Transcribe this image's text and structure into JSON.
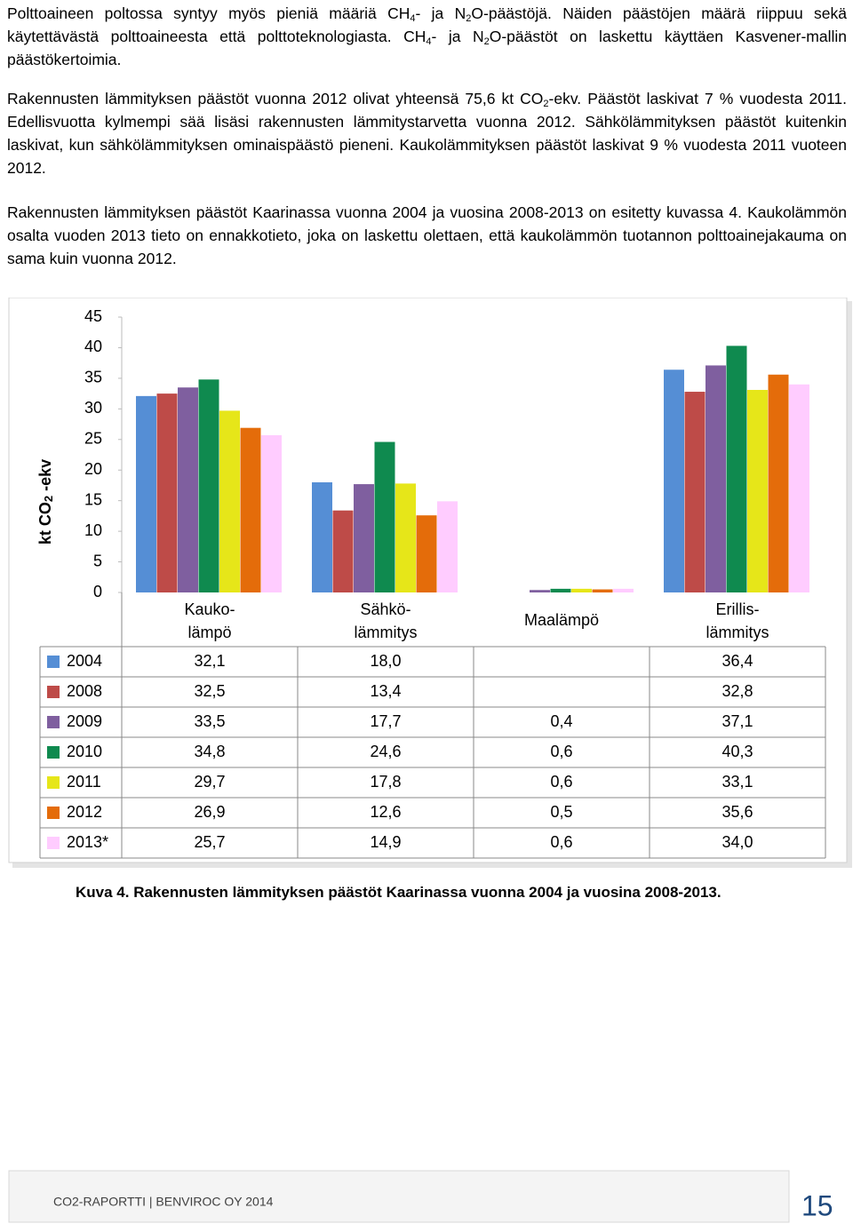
{
  "paragraphs": [
    {
      "runs": [
        "Polttoaineen poltossa syntyy myös pieniä määriä CH",
        "4",
        "- ja N",
        "2",
        "O-päästöjä. Näiden päästöjen määrä riippuu sekä käytettävästä polttoaineesta että polttoteknologiasta. CH",
        "4",
        "- ja N",
        "2",
        "O-päästöt on laskettu käyttäen Kasvener-mallin päästökertoimia."
      ]
    },
    {
      "runs": [
        "Rakennusten lämmityksen päästöt vuonna 2012 olivat yhteensä 75,6 kt CO",
        "2",
        "-ekv. Päästöt laskivat 7 % vuodesta 2011. Edellisvuotta kylmempi sää lisäsi rakennusten lämmitystarvetta vuonna 2012. Sähkölämmityksen päästöt kuitenkin laskivat, kun sähkölämmityksen ominaispäästö pieneni. Kaukolämmityksen päästöt laskivat 9 % vuodesta 2011 vuoteen 2012."
      ]
    },
    {
      "runs": [
        "Rakennusten lämmityksen päästöt Kaarinassa  vuonna 2004 ja vuosina 2008-2013 on esitetty kuvassa 4. Kaukolämmön osalta vuoden 2013 tieto on ennakkotieto, joka on laskettu olettaen, että kaukolämmön tuotannon polttoainejakauma on sama kuin vuonna 2012."
      ]
    }
  ],
  "chart_data": {
    "type": "bar",
    "y_label_runs": [
      "kt CO",
      "2",
      " -ekv"
    ],
    "categories": [
      "Kauko-\nlämpö",
      "Sähkö-\nlämmitys",
      "Maalämpö",
      "Erillis-\nlämmitys"
    ],
    "ylim": [
      0,
      45
    ],
    "yticks": [
      0,
      5,
      10,
      15,
      20,
      25,
      30,
      35,
      40,
      45
    ],
    "series": [
      {
        "name": "2004",
        "color": "#558ed5",
        "values": [
          32.1,
          18.0,
          null,
          36.4
        ],
        "value_labels": [
          "32,1",
          "18,0",
          null,
          "36,4"
        ]
      },
      {
        "name": "2008",
        "color": "#be4b48",
        "values": [
          32.5,
          13.4,
          null,
          32.8
        ],
        "value_labels": [
          "32,5",
          "13,4",
          null,
          "32,8"
        ]
      },
      {
        "name": "2009",
        "color": "#7f5f9f",
        "values": [
          33.5,
          17.7,
          0.4,
          37.1
        ],
        "value_labels": [
          "33,5",
          "17,7",
          "0,4",
          "37,1"
        ]
      },
      {
        "name": "2010",
        "color": "#0f8a4f",
        "values": [
          34.8,
          24.6,
          0.6,
          40.3
        ],
        "value_labels": [
          "34,8",
          "24,6",
          "0,6",
          "40,3"
        ]
      },
      {
        "name": "2011",
        "color": "#e6e619",
        "values": [
          29.7,
          17.8,
          0.6,
          33.1
        ],
        "value_labels": [
          "29,7",
          "17,8",
          "0,6",
          "33,1"
        ]
      },
      {
        "name": "2012",
        "color": "#e46c0a",
        "values": [
          26.9,
          12.6,
          0.5,
          35.6
        ],
        "value_labels": [
          "26,9",
          "12,6",
          "0,5",
          "35,6"
        ]
      },
      {
        "name": "2013*",
        "color": "#ffccff",
        "values": [
          25.7,
          14.9,
          0.6,
          34.0
        ],
        "value_labels": [
          "25,7",
          "14,9",
          "0,6",
          "34,0"
        ]
      }
    ]
  },
  "caption": "Kuva 4. Rakennusten lämmityksen päästöt Kaarinassa  vuonna 2004 ja vuosina 2008-2013.",
  "footer": {
    "text": "CO2-RAPORTTI | BENVIROC OY 2014",
    "page_number": "15"
  }
}
